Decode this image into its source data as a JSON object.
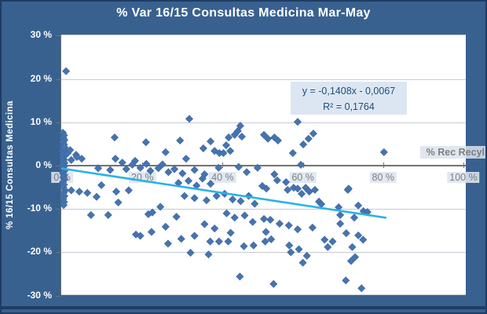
{
  "chart_data": {
    "type": "scatter",
    "title": "% Var 16/15 Consultas Medicina Mar-May",
    "xlabel": "% Rec Recyl",
    "ylabel": "% 16/15 Consultas Medicina",
    "x_ticks": [
      "0 %",
      "20 %",
      "40 %",
      "60 %",
      "80 %",
      "100 %"
    ],
    "x_tick_values": [
      0,
      20,
      40,
      60,
      80,
      100
    ],
    "y_ticks": [
      "30 %",
      "20 %",
      "10 %",
      "0 %",
      "-10 %",
      "-20 %",
      "-30 %"
    ],
    "y_tick_values": [
      30,
      20,
      10,
      0,
      -10,
      -20,
      -30
    ],
    "xlim": [
      0,
      100
    ],
    "ylim": [
      -30,
      30
    ],
    "grid": true,
    "legend": false,
    "trendline": {
      "equation_label": "y = -0,1408x - 0,0067",
      "r2_label": "R² = 0,1764",
      "slope": -0.1408,
      "intercept": -0.0067,
      "r2": 0.1764,
      "x_start_pct": 0,
      "x_end_pct": 80.6
    },
    "colors": {
      "background": "#38618F",
      "frame": "#1F3C64",
      "plot_bg": "#FFFFFF",
      "gridline": "#C5CBD3",
      "axis": "#737373",
      "point_fill": "#4674AE",
      "point_stroke": "#3C66A4",
      "trendline": "#2BB3E6",
      "annotation_bg": "#DCE6F2",
      "annotation_text": "#1F4E79",
      "tick_text": "#7F7F7F",
      "title_text": "#FFFFFF"
    },
    "points": [
      [
        0.2,
        7.6
      ],
      [
        0.5,
        7
      ],
      [
        0.3,
        6.4
      ],
      [
        0.6,
        5.9
      ],
      [
        0.2,
        5.4
      ],
      [
        0.5,
        4.9
      ],
      [
        0.3,
        4.4
      ],
      [
        0.7,
        3.9
      ],
      [
        0.2,
        3.4
      ],
      [
        0.5,
        3
      ],
      [
        0.3,
        2.6
      ],
      [
        0.6,
        2.2
      ],
      [
        0.2,
        1.8
      ],
      [
        0.5,
        1.4
      ],
      [
        0.3,
        1
      ],
      [
        0.6,
        0.6
      ],
      [
        0.2,
        0.2
      ],
      [
        0.5,
        -0.2
      ],
      [
        0.3,
        -0.7
      ],
      [
        0.6,
        -1.2
      ],
      [
        0.2,
        -1.7
      ],
      [
        0.5,
        -2.2
      ],
      [
        0.3,
        -2.7
      ],
      [
        0.6,
        -3.2
      ],
      [
        0.2,
        -3.8
      ],
      [
        0.5,
        -4.4
      ],
      [
        0.3,
        -5
      ],
      [
        0.8,
        -5.7
      ],
      [
        0.4,
        -6.3
      ],
      [
        0.6,
        -7
      ],
      [
        0.3,
        -7.7
      ],
      [
        0.5,
        -8.4
      ],
      [
        0.4,
        -9.1
      ],
      [
        1,
        21.8
      ],
      [
        0.6,
        4.3
      ],
      [
        1.4,
        2.9
      ],
      [
        2,
        3.6
      ],
      [
        2.3,
        1.3
      ],
      [
        3.5,
        2.5
      ],
      [
        3.7,
        2
      ],
      [
        4.9,
        1.6
      ],
      [
        2.3,
        -5.7
      ],
      [
        13.1,
        6.5
      ],
      [
        13.3,
        1.6
      ],
      [
        15,
        0.7
      ],
      [
        18.2,
        1.1
      ],
      [
        20.9,
        5.4
      ],
      [
        25.8,
        3.1
      ],
      [
        29.4,
        5.8
      ],
      [
        30.9,
        1.6
      ],
      [
        31.7,
        10.8
      ],
      [
        35.2,
        4
      ],
      [
        37,
        5.6
      ],
      [
        38,
        3.4
      ],
      [
        39.2,
        2.9
      ],
      [
        40.2,
        2.9
      ],
      [
        40.9,
        4.7
      ],
      [
        41.5,
        6.5
      ],
      [
        41.9,
        3.4
      ],
      [
        43,
        7.1
      ],
      [
        43.8,
        8
      ],
      [
        44.4,
        9.2
      ],
      [
        44.8,
        6.7
      ],
      [
        50.3,
        7.1
      ],
      [
        51.3,
        6.2
      ],
      [
        52.9,
        6.5
      ],
      [
        53.8,
        5.8
      ],
      [
        57.5,
        2.9
      ],
      [
        58.7,
        10.1
      ],
      [
        59.5,
        0.2
      ],
      [
        60.1,
        4.9
      ],
      [
        61.4,
        6.2
      ],
      [
        62.6,
        7.4
      ],
      [
        80.2,
        3.1
      ],
      [
        9,
        -0.6
      ],
      [
        12,
        -1
      ],
      [
        16,
        -0.8
      ],
      [
        17.5,
        0.2
      ],
      [
        19.5,
        -0.5
      ],
      [
        21,
        0.4
      ],
      [
        22,
        -1.2
      ],
      [
        24,
        -0.6
      ],
      [
        25,
        0.3
      ],
      [
        26.5,
        -1.5
      ],
      [
        28,
        -0.8
      ],
      [
        30,
        -1.8
      ],
      [
        33,
        -1
      ],
      [
        35.5,
        -2
      ],
      [
        39,
        -0.5
      ],
      [
        44,
        -0.3
      ],
      [
        46,
        -1.5
      ],
      [
        48.7,
        -0.5
      ],
      [
        4.3,
        -6
      ],
      [
        6.3,
        -6.3
      ],
      [
        8.6,
        -7.2
      ],
      [
        9.8,
        -4.5
      ],
      [
        13.5,
        -6
      ],
      [
        14,
        -8.5
      ],
      [
        7.2,
        -11.4
      ],
      [
        11.5,
        -11.4
      ],
      [
        16.6,
        -5.7
      ],
      [
        21.5,
        -11.2
      ],
      [
        22.5,
        -10.8
      ],
      [
        18.4,
        -15.9
      ],
      [
        19.5,
        -16.2
      ],
      [
        22.3,
        -15.3
      ],
      [
        24.5,
        -9.5
      ],
      [
        25.8,
        -14.1
      ],
      [
        26.4,
        -18
      ],
      [
        28.5,
        -11.8
      ],
      [
        29,
        -4
      ],
      [
        30.5,
        -7
      ],
      [
        31.5,
        -3.5
      ],
      [
        33,
        -7.5
      ],
      [
        33.5,
        -4.6
      ],
      [
        35,
        -3
      ],
      [
        36,
        -8
      ],
      [
        37,
        -4.2
      ],
      [
        38.5,
        -7
      ],
      [
        40.5,
        -6.5
      ],
      [
        42.5,
        -7.8
      ],
      [
        44.5,
        -8.2
      ],
      [
        46.5,
        -7
      ],
      [
        48,
        -8.8
      ],
      [
        41,
        -11
      ],
      [
        43,
        -12
      ],
      [
        45.5,
        -11.5
      ],
      [
        47.5,
        -13
      ],
      [
        35.5,
        -13.5
      ],
      [
        38,
        -14.5
      ],
      [
        33,
        -16.2
      ],
      [
        36.5,
        -20.5
      ],
      [
        42,
        -15.5
      ],
      [
        32,
        -20.1
      ],
      [
        29.7,
        -16.9
      ],
      [
        49.9,
        -4.7
      ],
      [
        50.9,
        -5.3
      ],
      [
        52.9,
        -2
      ],
      [
        53.6,
        -3.4
      ],
      [
        55.8,
        -3.8
      ],
      [
        56.2,
        -5.6
      ],
      [
        57.7,
        -5.1
      ],
      [
        58.7,
        -5.3
      ],
      [
        59.7,
        -6.5
      ],
      [
        60.7,
        -5.1
      ],
      [
        61.6,
        -6
      ],
      [
        63,
        -5.6
      ],
      [
        64,
        -8.3
      ],
      [
        64.6,
        -8.9
      ],
      [
        68.9,
        -9.6
      ],
      [
        69.3,
        -11.4
      ],
      [
        71.2,
        -5.6
      ],
      [
        71.4,
        -5.3
      ],
      [
        73.8,
        -9.2
      ],
      [
        75.1,
        -10.5
      ],
      [
        76.1,
        -10.7
      ],
      [
        72.8,
        -12
      ],
      [
        50.3,
        -12.3
      ],
      [
        51.9,
        -12.5
      ],
      [
        54.2,
        -13.4
      ],
      [
        56.5,
        -13.8
      ],
      [
        58.7,
        -14.7
      ],
      [
        62.4,
        -14.3
      ],
      [
        69.3,
        -13.4
      ],
      [
        70.8,
        -15.6
      ],
      [
        73.8,
        -16.1
      ],
      [
        36.9,
        -17.5
      ],
      [
        39.1,
        -17.5
      ],
      [
        41.4,
        -17.5
      ],
      [
        45.3,
        -18.6
      ],
      [
        47.7,
        -18.4
      ],
      [
        50.6,
        -17.5
      ],
      [
        50.8,
        -15.3
      ],
      [
        52.1,
        -17
      ],
      [
        56.6,
        -18.4
      ],
      [
        57,
        -20
      ],
      [
        59,
        -19.3
      ],
      [
        60,
        -22.4
      ],
      [
        61,
        -20.8
      ],
      [
        65.4,
        -17.1
      ],
      [
        66.2,
        -18.8
      ],
      [
        67.4,
        -17.5
      ],
      [
        72,
        -22
      ],
      [
        73,
        -21.1
      ],
      [
        72.3,
        -18.8
      ],
      [
        75,
        -17.1
      ],
      [
        44.3,
        -25.6
      ],
      [
        52.7,
        -27.3
      ],
      [
        70.7,
        -26.5
      ],
      [
        74.6,
        -28.3
      ]
    ]
  }
}
